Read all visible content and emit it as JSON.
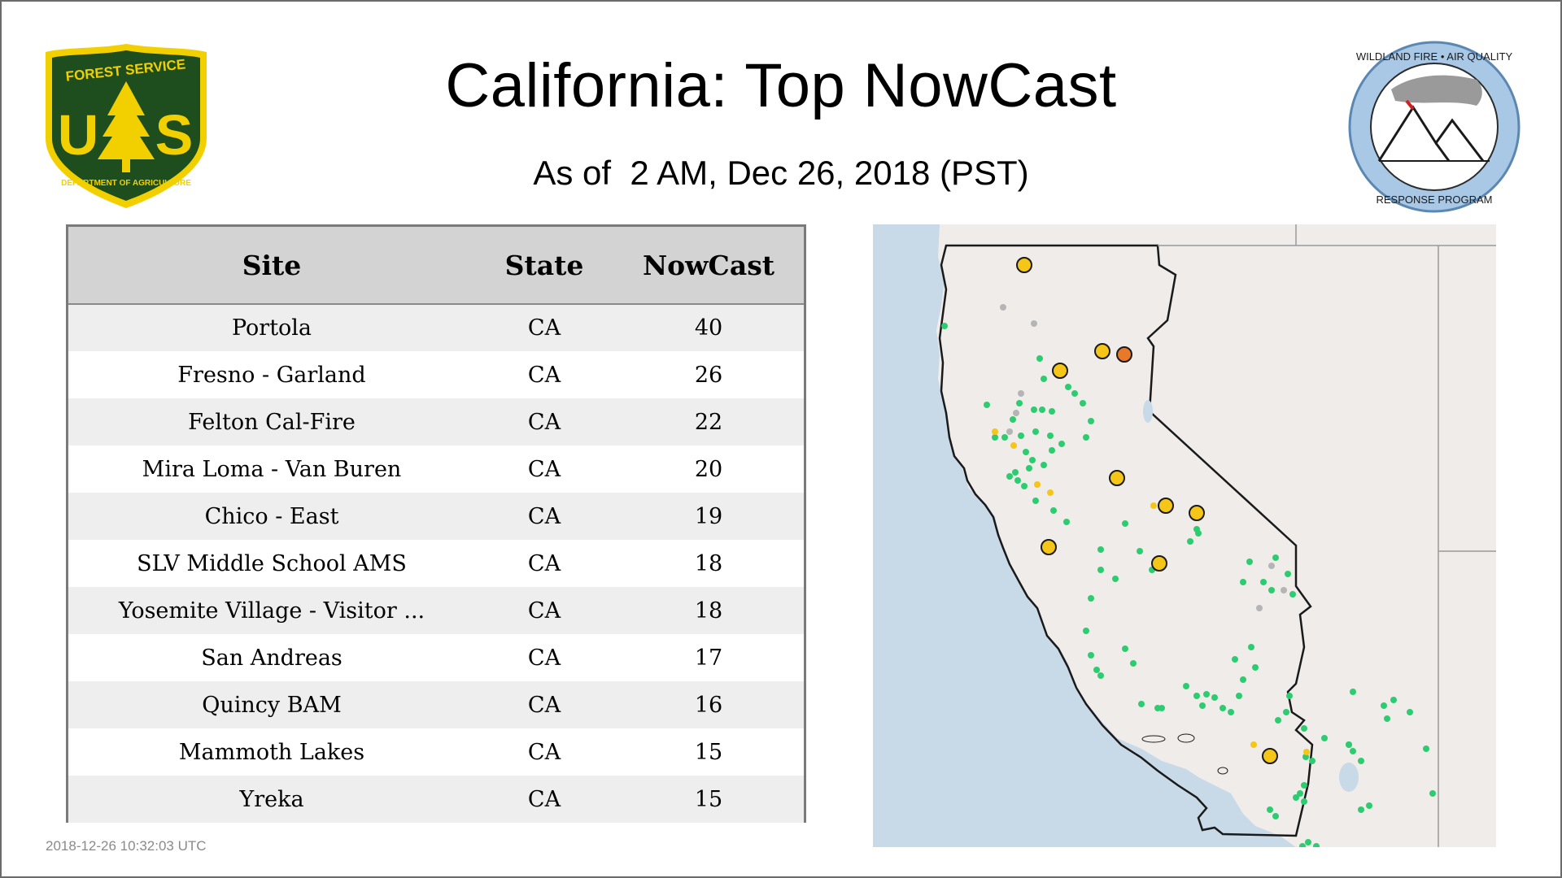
{
  "page": {
    "title": "California: Top NowCast",
    "subtitle": "As of  2 AM, Dec 26, 2018 (PST)",
    "timestamp": "2018-12-26 10:32:03 UTC"
  },
  "logos": {
    "usfs": {
      "text_top": "FOREST SERVICE",
      "text_bottom": "DEPARTMENT OF AGRICULTURE",
      "letters": "U S"
    },
    "wfaq": {
      "text_top": "WILDLAND FIRE • AIR QUALITY",
      "text_bottom": "RESPONSE PROGRAM"
    }
  },
  "table": {
    "columns": [
      "Site",
      "State",
      "NowCast"
    ],
    "rows": [
      {
        "site": "Portola",
        "state": "CA",
        "nowcast": "40"
      },
      {
        "site": "Fresno - Garland",
        "state": "CA",
        "nowcast": "26"
      },
      {
        "site": "Felton Cal-Fire",
        "state": "CA",
        "nowcast": "22"
      },
      {
        "site": "Mira Loma - Van Buren",
        "state": "CA",
        "nowcast": "20"
      },
      {
        "site": "Chico - East",
        "state": "CA",
        "nowcast": "19"
      },
      {
        "site": "SLV Middle School AMS",
        "state": "CA",
        "nowcast": "18"
      },
      {
        "site": "Yosemite Village - Visitor ...",
        "state": "CA",
        "nowcast": "18"
      },
      {
        "site": "San Andreas",
        "state": "CA",
        "nowcast": "17"
      },
      {
        "site": "Quincy BAM",
        "state": "CA",
        "nowcast": "16"
      },
      {
        "site": "Mammoth Lakes",
        "state": "CA",
        "nowcast": "15"
      },
      {
        "site": "Yreka",
        "state": "CA",
        "nowcast": "15"
      }
    ]
  },
  "map": {
    "colors": {
      "ocean": "#c8d9e8",
      "land": "#efecea",
      "border": "#1a1a1a",
      "good": "#2ecc71",
      "moderate": "#f5c518",
      "usg": "#e8782a",
      "missing": "#b5b5b5"
    },
    "legend_note": "",
    "highlighted_monitors": "yellow = top sites, orange = highest"
  }
}
